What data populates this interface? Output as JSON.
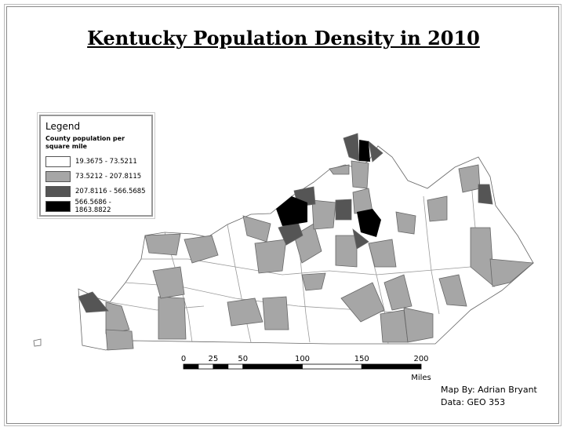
{
  "title": "Kentucky Population Density in 2010",
  "legend": {
    "title": "Legend",
    "subtitle": "County population per square mile",
    "classes": [
      {
        "label": "19.3675 - 73.5211",
        "color": "#ffffff"
      },
      {
        "label": "73.5212 - 207.8115",
        "color": "#a6a6a6"
      },
      {
        "label": "207.8116 - 566.5685",
        "color": "#555555"
      },
      {
        "label": "566.5686 - 1863.8822",
        "color": "#000000"
      }
    ]
  },
  "scale": {
    "ticks": [
      0,
      25,
      50,
      100,
      150,
      200
    ],
    "unit": "Miles"
  },
  "credits": [
    "Map By: Adrian Bryant",
    "Data: GEO 353"
  ]
}
